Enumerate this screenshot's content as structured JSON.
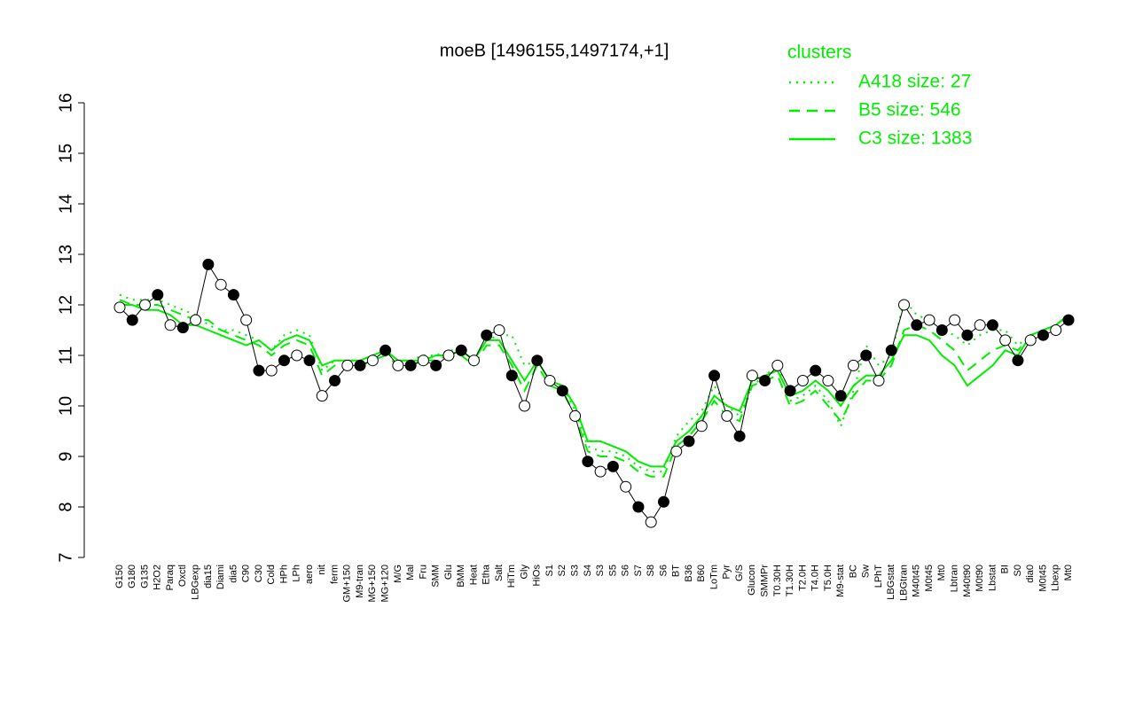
{
  "chart_data": {
    "type": "line",
    "title": "moeB [1496155,1497174,+1]",
    "legend_title": "clusters",
    "legend_position": "top-right",
    "categories": [
      "G150",
      "G180",
      "G135",
      "H2O2",
      "Paraq",
      "Oxctl",
      "LBGexp",
      "dia15",
      "Diami",
      "dia5",
      "C90",
      "C30",
      "Cold",
      "HPh",
      "LPh",
      "aero",
      "nit",
      "ferm",
      "GM+150",
      "M9-tran",
      "MG+150",
      "MG+120",
      "M/G",
      "Mal",
      "Fru",
      "SMM",
      "Glu",
      "BMM",
      "Heat",
      "Etha",
      "Salt",
      "HiTm",
      "Gly",
      "HiOs",
      "S1",
      "S2",
      "S3",
      "S4",
      "S3",
      "S5",
      "S6",
      "S7",
      "S8",
      "S6",
      "BT",
      "B36",
      "B60",
      "LoTm",
      "Pyr",
      "G/S",
      "Glucon",
      "SMMPr",
      "T0.30H",
      "T1.30H",
      "T2.0H",
      "T4.0H",
      "T5.0H",
      "M9-stat",
      "BC",
      "Sw",
      "LPhT",
      "LBGstat",
      "LBGtran",
      "M40t45",
      "M0t45",
      "Mt0",
      "Lbtran",
      "M40t90",
      "M0t90",
      "Lbstat",
      "BI",
      "S0",
      "dia0",
      "M0t45",
      "Lbexp",
      "Mt0"
    ],
    "values": [
      11.95,
      11.7,
      12.0,
      12.2,
      11.6,
      11.55,
      11.7,
      12.8,
      12.4,
      12.2,
      11.7,
      10.7,
      10.7,
      10.9,
      11.0,
      10.9,
      10.2,
      10.5,
      10.8,
      10.8,
      10.9,
      11.1,
      10.8,
      10.8,
      10.9,
      10.8,
      11.0,
      11.1,
      10.9,
      11.4,
      11.5,
      10.6,
      10.0,
      10.9,
      10.5,
      10.3,
      9.8,
      8.9,
      8.7,
      8.8,
      8.4,
      8.0,
      7.7,
      8.1,
      9.1,
      9.3,
      9.6,
      10.6,
      9.8,
      9.4,
      10.6,
      10.5,
      10.8,
      10.3,
      10.5,
      10.7,
      10.5,
      10.2,
      10.8,
      11.0,
      10.5,
      11.1,
      12.0,
      11.6,
      11.7,
      11.5,
      11.7,
      11.4,
      11.6,
      11.6,
      11.3,
      10.9,
      11.3,
      11.4,
      11.5,
      11.7
    ],
    "series": [
      {
        "name": "A418 size: 27",
        "color": "#00ee00",
        "dash": "dotted",
        "values": [
          12.2,
          12.1,
          12.1,
          12.1,
          12.0,
          11.9,
          11.8,
          11.6,
          11.5,
          11.5,
          11.4,
          11.3,
          11.1,
          11.4,
          11.5,
          11.4,
          10.7,
          10.9,
          10.9,
          10.9,
          11.0,
          11.1,
          10.9,
          10.9,
          11.0,
          11.0,
          11.1,
          11.1,
          10.9,
          11.3,
          11.4,
          11.4,
          10.8,
          10.9,
          10.5,
          10.4,
          9.9,
          9.2,
          9.1,
          9.1,
          9.0,
          8.8,
          8.7,
          8.7,
          9.4,
          9.7,
          9.9,
          10.4,
          10.0,
          9.8,
          10.4,
          10.6,
          10.8,
          10.1,
          10.2,
          10.4,
          10.1,
          9.6,
          10.3,
          11.2,
          10.8,
          11.0,
          12.1,
          11.8,
          11.7,
          11.5,
          11.4,
          11.2,
          11.4,
          11.5,
          11.5,
          11.2,
          11.4,
          11.5,
          11.6,
          11.8
        ]
      },
      {
        "name": "B5 size: 546",
        "color": "#00ee00",
        "dash": "dashed",
        "values": [
          12.1,
          12.0,
          12.0,
          12.0,
          11.9,
          11.8,
          11.7,
          11.7,
          11.5,
          11.4,
          11.3,
          11.2,
          11.0,
          11.2,
          11.3,
          11.2,
          10.6,
          10.8,
          10.8,
          10.8,
          10.9,
          11.0,
          10.8,
          10.8,
          10.9,
          10.9,
          11.0,
          11.0,
          10.8,
          11.2,
          11.2,
          10.8,
          10.3,
          10.8,
          10.4,
          10.3,
          9.8,
          9.1,
          9.0,
          9.0,
          8.9,
          8.7,
          8.6,
          8.6,
          9.2,
          9.4,
          9.7,
          10.1,
          9.8,
          9.7,
          10.4,
          10.5,
          10.6,
          10.0,
          10.1,
          10.3,
          10.0,
          9.7,
          10.2,
          10.5,
          10.5,
          10.8,
          11.5,
          11.6,
          11.5,
          11.3,
          11.1,
          10.7,
          10.9,
          11.1,
          11.2,
          11.1,
          11.4,
          11.5,
          11.6,
          11.8
        ]
      },
      {
        "name": "C3 size: 1383",
        "color": "#00ee00",
        "dash": "solid",
        "values": [
          12.0,
          12.0,
          11.9,
          11.9,
          11.8,
          11.6,
          11.6,
          11.5,
          11.4,
          11.3,
          11.2,
          11.3,
          11.1,
          11.3,
          11.4,
          11.3,
          10.8,
          10.9,
          10.9,
          10.9,
          11.0,
          11.1,
          10.9,
          10.9,
          10.9,
          11.0,
          11.0,
          11.1,
          10.9,
          11.3,
          11.3,
          10.9,
          10.5,
          10.9,
          10.5,
          10.4,
          10.0,
          9.3,
          9.3,
          9.2,
          9.1,
          8.9,
          8.8,
          8.8,
          9.3,
          9.5,
          9.8,
          10.2,
          10.0,
          9.9,
          10.5,
          10.6,
          10.7,
          10.2,
          10.3,
          10.5,
          10.3,
          10.0,
          10.4,
          10.6,
          10.6,
          10.9,
          11.4,
          11.4,
          11.3,
          11.0,
          10.8,
          10.4,
          10.6,
          10.8,
          11.1,
          11.0,
          11.4,
          11.5,
          11.6,
          11.8
        ]
      }
    ],
    "ylim": [
      7,
      16
    ],
    "yticks": [
      7,
      8,
      9,
      10,
      11,
      12,
      13,
      14,
      15,
      16
    ]
  }
}
